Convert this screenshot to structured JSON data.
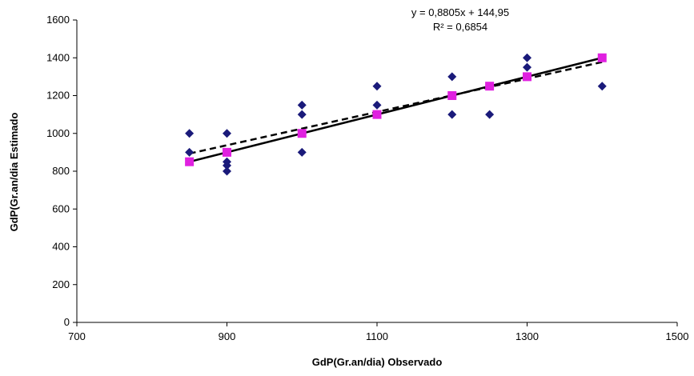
{
  "chart_data": {
    "type": "scatter",
    "xlabel": "GdP(Gr.an/dia) Observado",
    "ylabel": "GdP(Gr.an/dia Estimado",
    "xlim": [
      700,
      1500
    ],
    "ylim": [
      0,
      1600
    ],
    "x_ticks": [
      700,
      900,
      1100,
      1300,
      1500
    ],
    "y_ticks": [
      0,
      200,
      400,
      600,
      800,
      1000,
      1200,
      1400,
      1600
    ],
    "grid": false,
    "legend": "none",
    "annotations": [
      "y = 0,8805x + 144,95",
      "R² = 0,6854"
    ],
    "series": [
      {
        "marker": "diamond",
        "color": "#1a1a7a",
        "points": [
          [
            850,
            1000
          ],
          [
            850,
            900
          ],
          [
            900,
            1000
          ],
          [
            900,
            900
          ],
          [
            900,
            850
          ],
          [
            900,
            830
          ],
          [
            900,
            800
          ],
          [
            1000,
            1150
          ],
          [
            1000,
            1100
          ],
          [
            1000,
            900
          ],
          [
            1100,
            1250
          ],
          [
            1100,
            1150
          ],
          [
            1100,
            1100
          ],
          [
            1200,
            1300
          ],
          [
            1200,
            1100
          ],
          [
            1250,
            1100
          ],
          [
            1300,
            1400
          ],
          [
            1300,
            1350
          ],
          [
            1400,
            1250
          ]
        ]
      },
      {
        "marker": "square",
        "color": "#e020e0",
        "points": [
          [
            850,
            850
          ],
          [
            900,
            900
          ],
          [
            1000,
            1000
          ],
          [
            1100,
            1100
          ],
          [
            1200,
            1200
          ],
          [
            1250,
            1250
          ],
          [
            1300,
            1300
          ],
          [
            1400,
            1400
          ]
        ]
      }
    ],
    "lines": [
      {
        "style": "solid",
        "color": "#000000",
        "slope": 1,
        "intercept": 0,
        "x_range": [
          850,
          1400
        ]
      },
      {
        "style": "dashed",
        "color": "#000000",
        "slope": 0.8805,
        "intercept": 144.95,
        "x_range": [
          850,
          1400
        ]
      }
    ]
  }
}
